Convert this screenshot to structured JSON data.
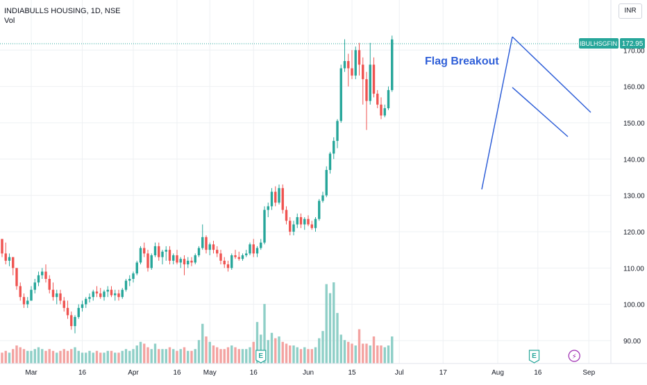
{
  "header": {
    "symbol_line": "INDIABULLS HOUSING, 1D, NSE",
    "volume_label": "Vol",
    "currency_button": "INR"
  },
  "annotation": {
    "text": "Flag Breakout"
  },
  "last_price": {
    "ticker": "IBULHSGFIN",
    "value": "172.95"
  },
  "colors": {
    "up": "#26a69a",
    "down": "#ef5350",
    "vol_up": "#8fcfc7",
    "vol_down": "#f3a3a1",
    "grid": "#eef0f3",
    "trend": "#2f5fd8",
    "annotation": "#2f5fd8",
    "price_tag": "#26a69a"
  },
  "events": [
    {
      "icon": "earnings-icon",
      "label": "E",
      "bar": 71
    },
    {
      "icon": "earnings-icon",
      "label": "E",
      "bar": 146
    },
    {
      "icon": "lightning-icon",
      "label": "⚡",
      "bar": 157
    }
  ],
  "chart_data": {
    "type": "candlestick",
    "y_axis": {
      "range": [
        85,
        176
      ],
      "ticks": [
        90,
        100,
        110,
        120,
        130,
        140,
        150,
        160,
        170
      ],
      "tick_labels": [
        "90.00",
        "100.00",
        "110.00",
        "120.00",
        "130.00",
        "140.00",
        "150.00",
        "160.00",
        "170.00"
      ]
    },
    "x_axis": {
      "ticks": [
        {
          "label": "Mar",
          "bar": 8
        },
        {
          "label": "16",
          "bar": 22
        },
        {
          "label": "Apr",
          "bar": 36
        },
        {
          "label": "16",
          "bar": 48
        },
        {
          "label": "May",
          "bar": 57
        },
        {
          "label": "16",
          "bar": 69
        },
        {
          "label": "Jun",
          "bar": 84
        },
        {
          "label": "15",
          "bar": 96
        },
        {
          "label": "Jul",
          "bar": 109
        },
        {
          "label": "17",
          "bar": 121
        },
        {
          "label": "Aug",
          "bar": 136
        },
        {
          "label": "16",
          "bar": 147
        },
        {
          "label": "Sep",
          "bar": 161
        }
      ]
    },
    "ohlc": [
      [
        118.0,
        118.0,
        113.0,
        114.0
      ],
      [
        114.0,
        117.0,
        111.0,
        112.0
      ],
      [
        112.0,
        114.0,
        110.5,
        113.0
      ],
      [
        113.0,
        113.0,
        108.0,
        110.0
      ],
      [
        110.0,
        110.0,
        104.0,
        105.0
      ],
      [
        105.0,
        106.0,
        101.0,
        102.0
      ],
      [
        102.0,
        103.0,
        99.0,
        100.0
      ],
      [
        100.0,
        102.0,
        99.0,
        101.0
      ],
      [
        101.0,
        105.0,
        101.0,
        104.0
      ],
      [
        104.0,
        107.0,
        103.0,
        106.0
      ],
      [
        106.0,
        109.0,
        105.0,
        108.0
      ],
      [
        108.0,
        110.0,
        107.0,
        109.0
      ],
      [
        109.0,
        111.0,
        106.0,
        107.0
      ],
      [
        107.0,
        108.0,
        103.0,
        104.0
      ],
      [
        104.0,
        106.0,
        101.0,
        102.0
      ],
      [
        102.0,
        104.0,
        100.0,
        103.0
      ],
      [
        103.0,
        104.0,
        100.0,
        101.0
      ],
      [
        101.0,
        102.0,
        98.0,
        99.0
      ],
      [
        99.0,
        101.0,
        96.0,
        97.0
      ],
      [
        97.0,
        98.0,
        93.0,
        94.0
      ],
      [
        94.0,
        97.0,
        92.0,
        96.5
      ],
      [
        96.5,
        100.0,
        96.0,
        99.0
      ],
      [
        99.0,
        101.0,
        98.0,
        100.0
      ],
      [
        100.0,
        102.0,
        99.0,
        101.5
      ],
      [
        101.5,
        103.0,
        100.5,
        102.0
      ],
      [
        102.0,
        104.0,
        101.0,
        103.5
      ],
      [
        103.5,
        105.0,
        102.0,
        103.0
      ],
      [
        103.0,
        104.5,
        101.5,
        102.0
      ],
      [
        102.0,
        104.0,
        101.0,
        103.5
      ],
      [
        103.5,
        105.0,
        102.0,
        104.0
      ],
      [
        104.0,
        105.0,
        102.0,
        102.5
      ],
      [
        102.5,
        104.0,
        101.0,
        103.0
      ],
      [
        103.0,
        104.0,
        101.0,
        102.0
      ],
      [
        102.0,
        104.5,
        101.5,
        104.0
      ],
      [
        104.0,
        107.0,
        103.5,
        106.5
      ],
      [
        106.5,
        108.0,
        105.0,
        107.0
      ],
      [
        107.0,
        109.0,
        106.0,
        108.5
      ],
      [
        108.5,
        112.0,
        108.0,
        111.5
      ],
      [
        111.5,
        116.0,
        111.0,
        115.5
      ],
      [
        115.5,
        117.0,
        113.0,
        114.0
      ],
      [
        114.0,
        115.0,
        109.0,
        110.0
      ],
      [
        110.0,
        114.0,
        109.5,
        113.5
      ],
      [
        113.5,
        117.0,
        113.0,
        116.0
      ],
      [
        116.0,
        117.0,
        112.0,
        113.0
      ],
      [
        113.0,
        115.0,
        111.0,
        114.5
      ],
      [
        114.5,
        116.0,
        112.0,
        115.0
      ],
      [
        115.0,
        116.0,
        111.0,
        112.0
      ],
      [
        112.0,
        114.0,
        111.0,
        113.5
      ],
      [
        113.5,
        115.0,
        111.0,
        111.5
      ],
      [
        111.5,
        113.0,
        110.0,
        112.5
      ],
      [
        112.5,
        113.5,
        108.0,
        111.0
      ],
      [
        111.0,
        113.0,
        110.0,
        112.0
      ],
      [
        112.0,
        113.0,
        110.5,
        111.5
      ],
      [
        111.5,
        114.0,
        111.0,
        113.5
      ],
      [
        113.5,
        116.0,
        113.0,
        115.5
      ],
      [
        115.5,
        122.0,
        115.0,
        118.5
      ],
      [
        118.5,
        119.0,
        114.0,
        115.0
      ],
      [
        115.0,
        117.0,
        113.5,
        116.5
      ],
      [
        116.5,
        117.5,
        114.0,
        115.0
      ],
      [
        115.0,
        116.0,
        113.0,
        114.0
      ],
      [
        114.0,
        115.0,
        111.0,
        112.0
      ],
      [
        112.0,
        113.0,
        110.0,
        111.0
      ],
      [
        111.0,
        112.0,
        109.0,
        110.0
      ],
      [
        110.0,
        114.0,
        109.5,
        113.5
      ],
      [
        113.5,
        115.0,
        112.5,
        113.0
      ],
      [
        113.0,
        114.5,
        112.0,
        112.5
      ],
      [
        112.5,
        114.0,
        112.0,
        113.5
      ],
      [
        113.5,
        115.0,
        113.0,
        114.0
      ],
      [
        114.0,
        117.0,
        113.5,
        116.5
      ],
      [
        116.5,
        118.0,
        113.0,
        114.0
      ],
      [
        114.0,
        116.0,
        113.0,
        115.5
      ],
      [
        115.5,
        118.0,
        115.0,
        117.0
      ],
      [
        117.0,
        127.0,
        116.5,
        126.0
      ],
      [
        126.0,
        128.0,
        124.0,
        127.0
      ],
      [
        127.0,
        132.0,
        126.0,
        131.0
      ],
      [
        131.0,
        132.5,
        127.0,
        128.0
      ],
      [
        128.0,
        133.0,
        127.5,
        132.0
      ],
      [
        132.0,
        133.0,
        125.0,
        126.0
      ],
      [
        126.0,
        127.0,
        122.0,
        123.0
      ],
      [
        123.0,
        124.0,
        119.0,
        120.0
      ],
      [
        120.0,
        123.0,
        119.0,
        122.0
      ],
      [
        122.0,
        125.0,
        121.0,
        124.0
      ],
      [
        124.0,
        125.0,
        121.0,
        122.0
      ],
      [
        122.0,
        124.0,
        120.5,
        123.5
      ],
      [
        123.5,
        124.5,
        121.5,
        122.0
      ],
      [
        122.0,
        123.0,
        120.5,
        121.0
      ],
      [
        121.0,
        124.0,
        120.0,
        123.5
      ],
      [
        123.5,
        129.0,
        123.0,
        128.5
      ],
      [
        128.5,
        131.0,
        128.0,
        130.0
      ],
      [
        130.0,
        138.0,
        129.5,
        137.0
      ],
      [
        137.0,
        142.0,
        136.0,
        141.5
      ],
      [
        141.5,
        146.0,
        140.0,
        145.0
      ],
      [
        145.0,
        151.0,
        143.0,
        150.5
      ],
      [
        150.5,
        166.0,
        150.0,
        165.0
      ],
      [
        165.0,
        173.0,
        164.0,
        167.0
      ],
      [
        167.0,
        169.0,
        160.0,
        165.0
      ],
      [
        165.0,
        170.0,
        162.0,
        163.0
      ],
      [
        163.0,
        171.0,
        162.0,
        170.0
      ],
      [
        170.0,
        172.0,
        163.0,
        166.0
      ],
      [
        166.0,
        168.0,
        155.0,
        162.0
      ],
      [
        162.0,
        164.0,
        148.0,
        156.0
      ],
      [
        156.0,
        172.0,
        155.0,
        166.0
      ],
      [
        166.0,
        168.0,
        157.0,
        158.0
      ],
      [
        158.0,
        159.0,
        154.0,
        155.0
      ],
      [
        155.0,
        157.0,
        151.0,
        152.0
      ],
      [
        152.0,
        155.0,
        151.5,
        154.0
      ],
      [
        154.0,
        160.0,
        153.5,
        159.0
      ],
      [
        159.0,
        174.0,
        158.5,
        172.95
      ]
    ],
    "volume": [
      0.6,
      0.7,
      0.6,
      0.8,
      1.0,
      0.9,
      0.8,
      0.7,
      0.7,
      0.8,
      0.9,
      0.8,
      0.7,
      0.8,
      0.7,
      0.6,
      0.7,
      0.8,
      0.7,
      0.8,
      0.9,
      0.7,
      0.6,
      0.6,
      0.7,
      0.6,
      0.7,
      0.6,
      0.6,
      0.7,
      0.7,
      0.6,
      0.6,
      0.7,
      0.8,
      0.7,
      0.8,
      1.0,
      1.2,
      1.1,
      0.9,
      0.8,
      1.1,
      0.8,
      0.8,
      0.8,
      0.9,
      0.8,
      0.7,
      0.8,
      0.9,
      0.7,
      0.7,
      0.8,
      1.3,
      2.2,
      1.5,
      1.2,
      1.0,
      0.9,
      0.8,
      0.8,
      0.9,
      1.0,
      0.9,
      0.8,
      0.8,
      0.8,
      0.9,
      1.2,
      2.3,
      1.6,
      3.3,
      1.3,
      1.7,
      1.4,
      1.5,
      1.2,
      1.1,
      1.0,
      1.0,
      0.9,
      0.8,
      0.9,
      0.8,
      0.8,
      0.9,
      1.4,
      1.8,
      4.4,
      3.9,
      4.5,
      2.8,
      1.6,
      1.3,
      1.2,
      1.1,
      1.0,
      1.9,
      1.1,
      1.1,
      1.0,
      1.5,
      1.0,
      1.0,
      0.9,
      1.0,
      1.5
    ]
  }
}
